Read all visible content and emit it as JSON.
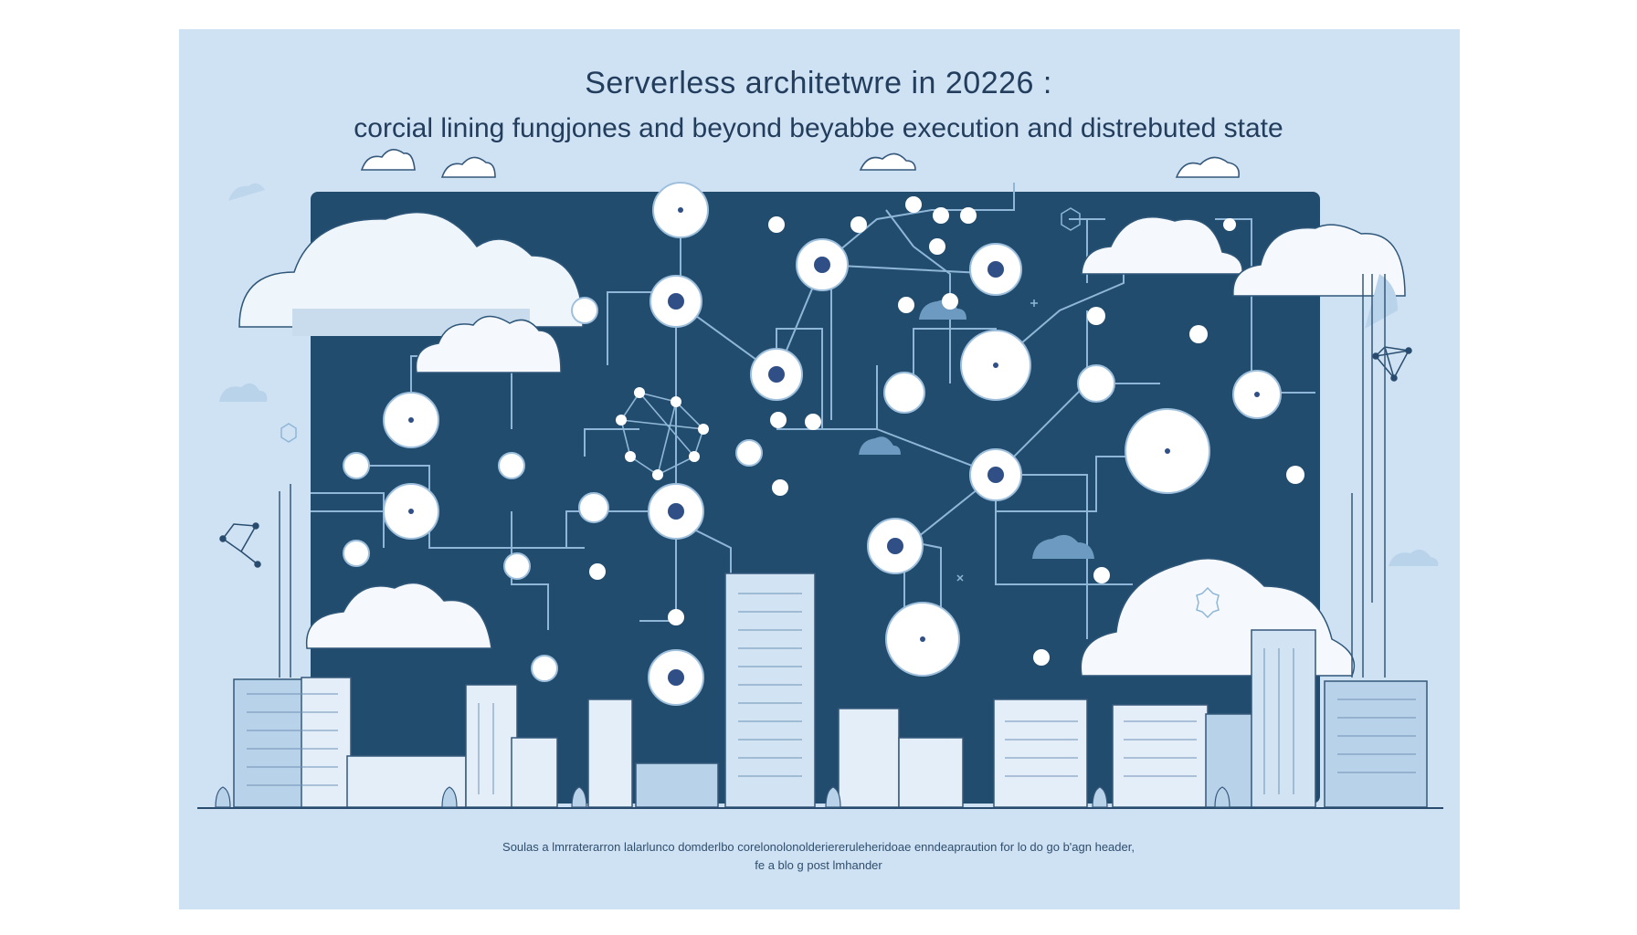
{
  "title": "Serverless architetwre in 20226 :",
  "subtitle": "corcial  lining  fungjones  and  beyond beyabbe execution  and  distrebuted state",
  "caption": {
    "line1": "Soulas a lmrraterarron lalarlunco domderlbo corelonolonolderiereruleheridoae enndeapraution  for lo do go b'agn header,",
    "line2": "fe a blo g post lmhander"
  },
  "colors": {
    "page_background": "#ffffff",
    "poster_background": "#cfe2f3",
    "panel_background": "#224c6d",
    "line": "#8fb6d6",
    "node_fill": "#ffffff",
    "node_dot": "#2f4f86",
    "building_light": "#e3eef8",
    "building_mid": "#b8d2ea",
    "building_dark": "#7fa7cb",
    "text": "#233d5c"
  },
  "icons": [
    "cloud-icon",
    "network-node-icon",
    "building-icon",
    "gear-icon",
    "hexagon-icon"
  ]
}
